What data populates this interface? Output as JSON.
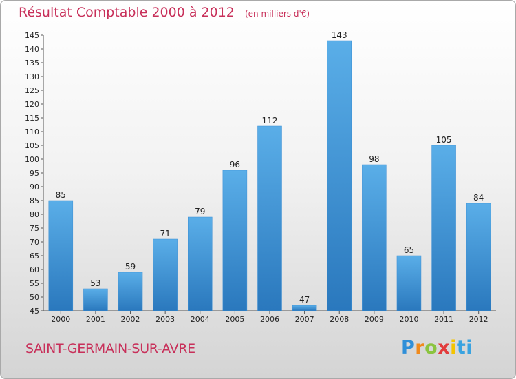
{
  "title": {
    "main": "Résultat Comptable 2000 à 2012",
    "sub": "(en milliers d'€)"
  },
  "commune": "SAINT-GERMAIN-SUR-AVRE",
  "logo": {
    "text": "Proxiti",
    "colors": [
      "#2f8fd8",
      "#f08a1c",
      "#8bc43f",
      "#e23b3b",
      "#f4c400",
      "#3aa3e0"
    ]
  },
  "colors": {
    "title": "#c8305a",
    "bar_top": "#5aaee8",
    "bar_bottom": "#2a78bd"
  },
  "chart_data": {
    "type": "bar",
    "title": "Résultat Comptable 2000 à 2012",
    "subtitle": "(en milliers d'€)",
    "xlabel": "",
    "ylabel": "",
    "categories": [
      "2000",
      "2001",
      "2002",
      "2003",
      "2004",
      "2005",
      "2006",
      "2007",
      "2008",
      "2009",
      "2010",
      "2011",
      "2012"
    ],
    "values": [
      85,
      53,
      59,
      71,
      79,
      96,
      112,
      47,
      143,
      98,
      65,
      105,
      84
    ],
    "value_labels": [
      "85",
      "53",
      "59",
      "71",
      "79",
      "96",
      "112",
      "47",
      "143",
      "98",
      "65",
      "105",
      "84"
    ],
    "ylim": [
      45,
      145
    ],
    "yticks": [
      "45",
      "50",
      "55",
      "60",
      "65",
      "70",
      "75",
      "80",
      "85",
      "90",
      "95",
      "100",
      "105",
      "110",
      "115",
      "120",
      "125",
      "130",
      "135",
      "140",
      "145"
    ],
    "grid": false,
    "legend": "none"
  }
}
